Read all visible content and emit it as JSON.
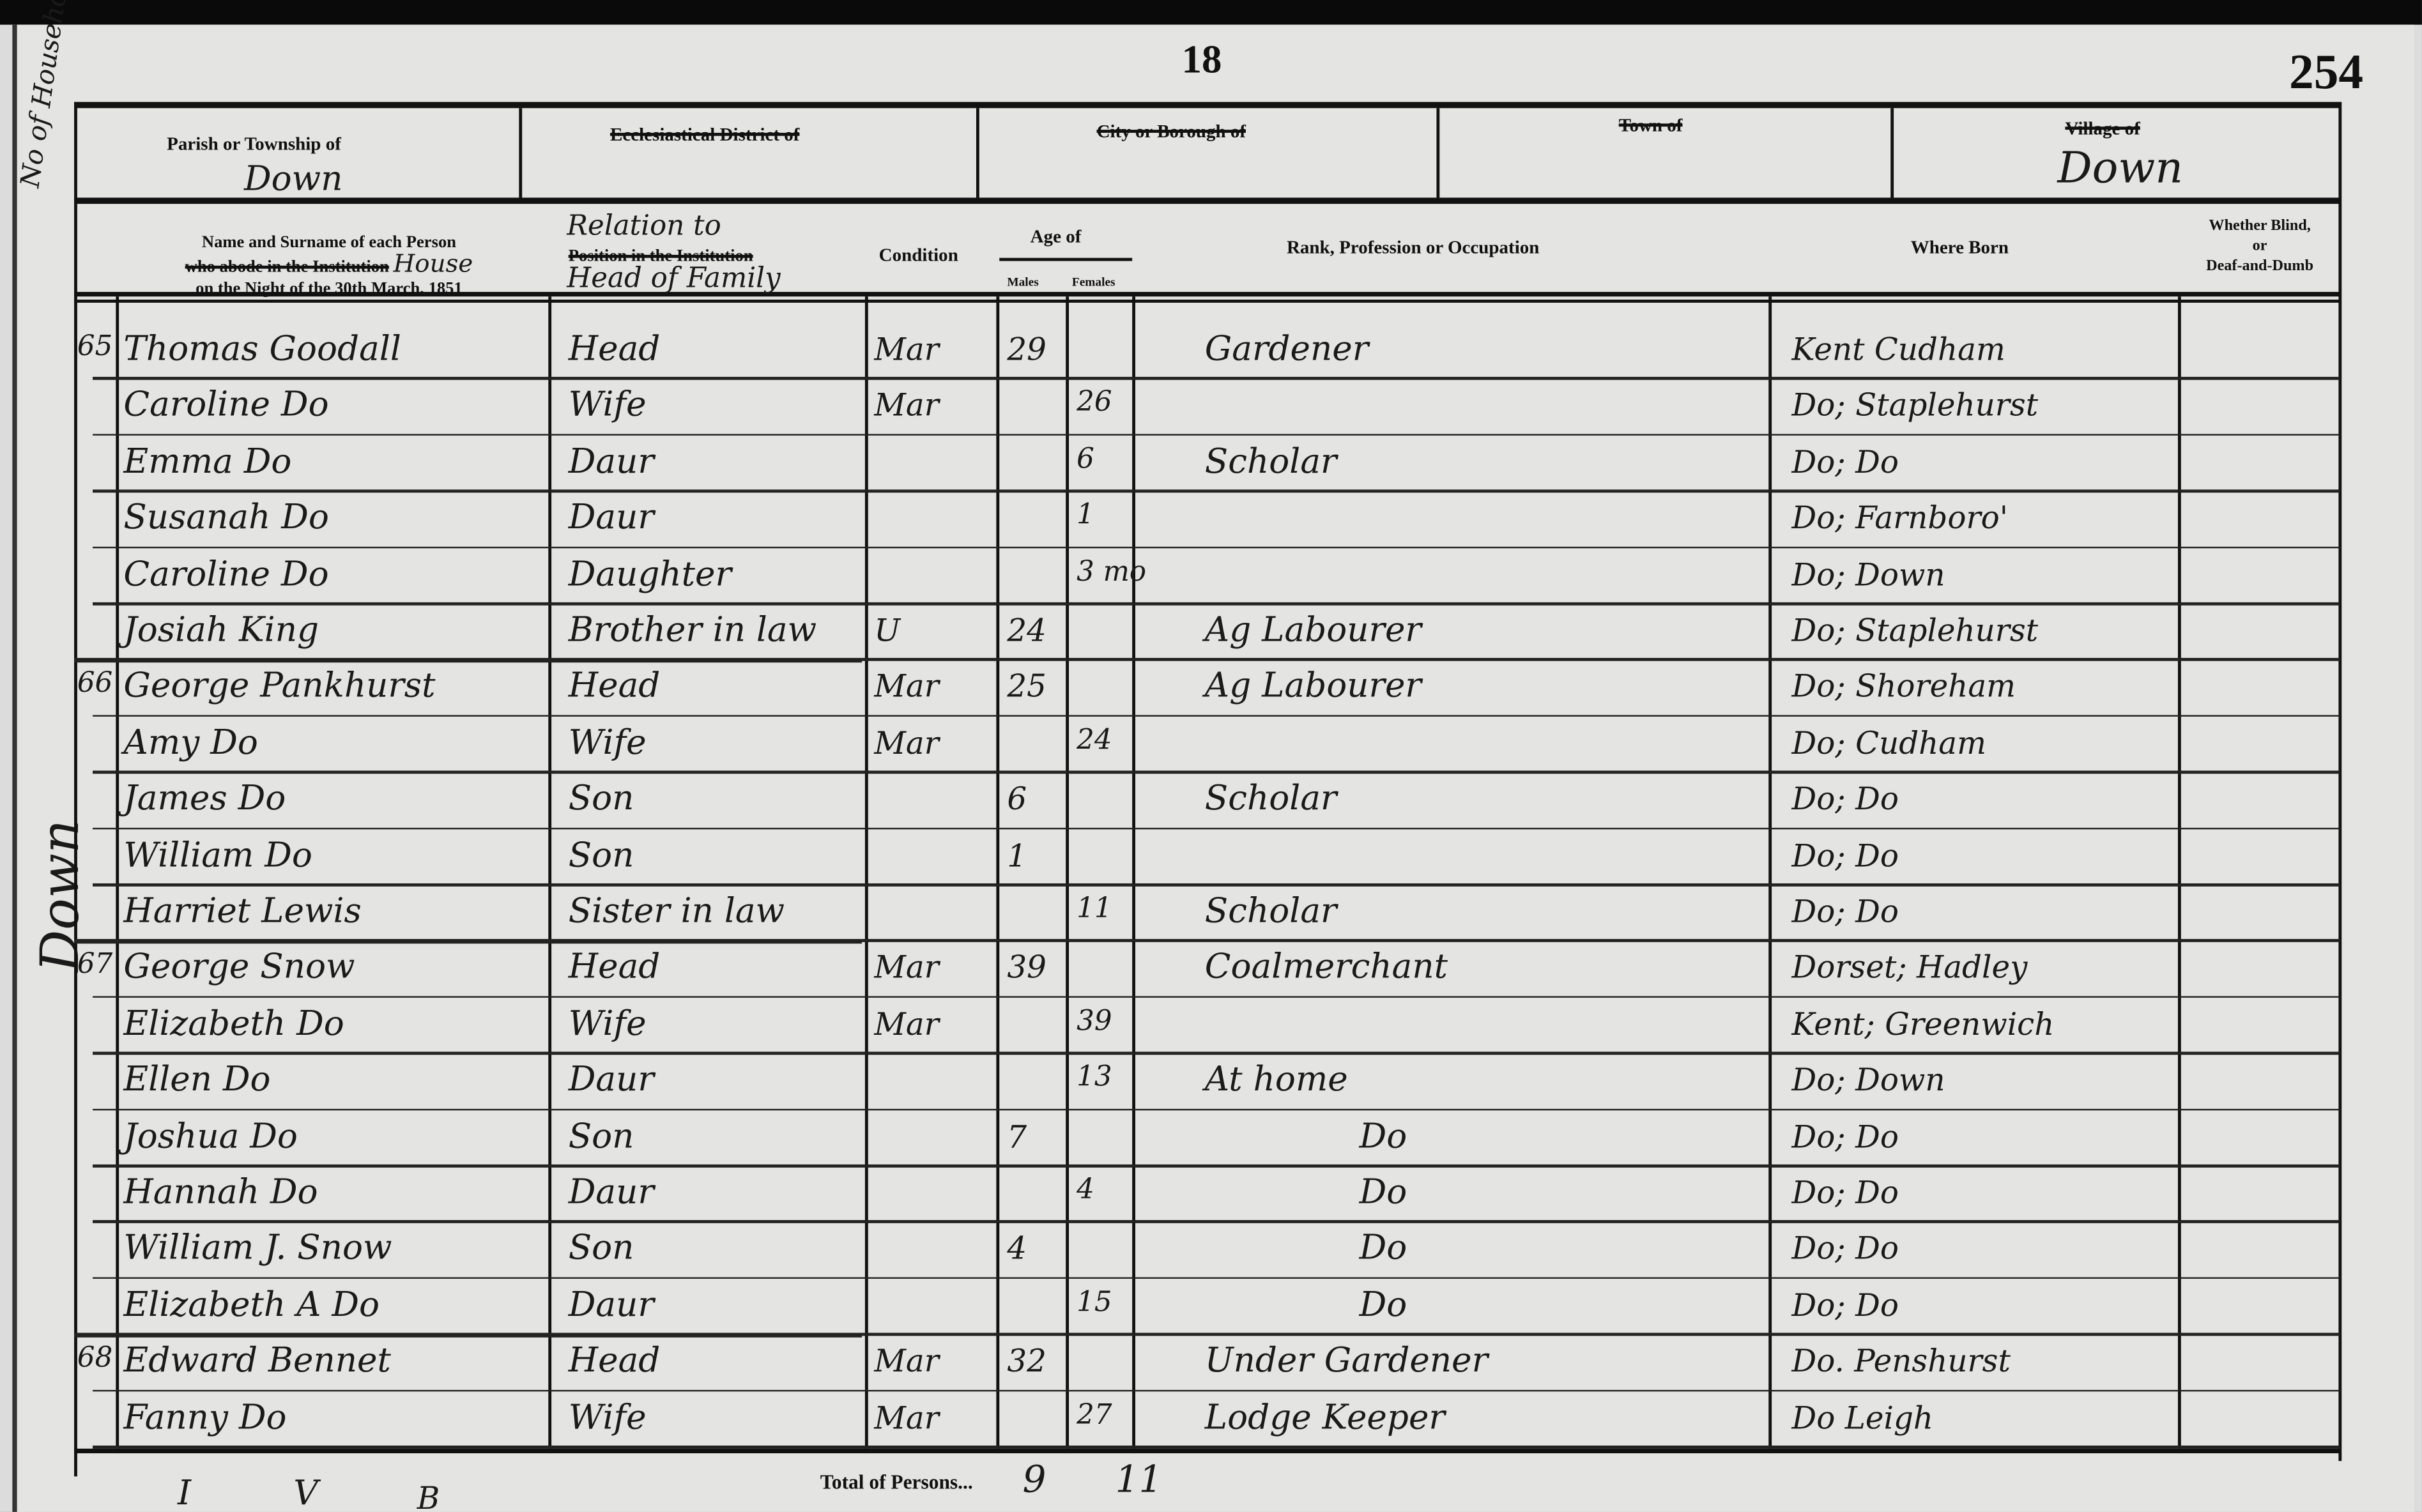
{
  "page": {
    "folio": "18",
    "page_number": "254"
  },
  "margin_note": "No of Householder's Schedule",
  "margin_place": "Down",
  "header": {
    "parish_label": "Parish or Township of",
    "parish_value": "Down",
    "ecclesiastical_label": "Ecclesiastical District of",
    "city_label": "City or Borough of",
    "town_label": "Town of",
    "village_label": "Village of",
    "village_value": "Down"
  },
  "columns": {
    "name": "Name and Surname of each Person who abode in the Institution House on the Night of the 30th March, 1851",
    "name_line1": "Name and Surname of each Person",
    "name_line2": "who abode in the Institution",
    "name_hand": "House",
    "name_line3": "on the Night of the 30th March, 1851",
    "relation_hand1": "Relation to",
    "relation_print": "Position in the Institution",
    "relation_hand2": "Head of Family",
    "condition": "Condition",
    "age": "Age of",
    "males": "Males",
    "females": "Females",
    "occupation": "Rank, Profession or Occupation",
    "where_born": "Where Born",
    "blind": "Whether Blind, or Deaf-and-Dumb",
    "blind_line1": "Whether Blind,",
    "blind_line2": "or",
    "blind_line3": "Deaf-and-Dumb"
  },
  "rows": [
    {
      "schedule": "65",
      "name": "Thomas Goodall",
      "relation": "Head",
      "condition": "Mar",
      "male_age": "29",
      "female_age": "",
      "occupation": "Gardener",
      "born": "Kent Cudham"
    },
    {
      "schedule": "",
      "name": "Caroline Do",
      "relation": "Wife",
      "condition": "Mar",
      "male_age": "",
      "female_age": "26",
      "occupation": "",
      "born": "Do; Staplehurst"
    },
    {
      "schedule": "",
      "name": "Emma Do",
      "relation": "Daur",
      "condition": "",
      "male_age": "",
      "female_age": "6",
      "occupation": "Scholar",
      "born": "Do; Do"
    },
    {
      "schedule": "",
      "name": "Susanah Do",
      "relation": "Daur",
      "condition": "",
      "male_age": "",
      "female_age": "1",
      "occupation": "",
      "born": "Do; Farnboro'"
    },
    {
      "schedule": "",
      "name": "Caroline Do",
      "relation": "Daughter",
      "condition": "",
      "male_age": "",
      "female_age": "3 mo",
      "occupation": "",
      "born": "Do; Down"
    },
    {
      "schedule": "",
      "name": "Josiah King",
      "relation": "Brother in law",
      "condition": "U",
      "male_age": "24",
      "female_age": "",
      "occupation": "Ag Labourer",
      "born": "Do; Staplehurst"
    },
    {
      "schedule": "66",
      "name": "George Pankhurst",
      "relation": "Head",
      "condition": "Mar",
      "male_age": "25",
      "female_age": "",
      "occupation": "Ag Labourer",
      "born": "Do; Shoreham"
    },
    {
      "schedule": "",
      "name": "Amy Do",
      "relation": "Wife",
      "condition": "Mar",
      "male_age": "",
      "female_age": "24",
      "occupation": "",
      "born": "Do; Cudham"
    },
    {
      "schedule": "",
      "name": "James Do",
      "relation": "Son",
      "condition": "",
      "male_age": "6",
      "female_age": "",
      "occupation": "Scholar",
      "born": "Do; Do"
    },
    {
      "schedule": "",
      "name": "William Do",
      "relation": "Son",
      "condition": "",
      "male_age": "1",
      "female_age": "",
      "occupation": "",
      "born": "Do; Do"
    },
    {
      "schedule": "",
      "name": "Harriet Lewis",
      "relation": "Sister in law",
      "condition": "",
      "male_age": "",
      "female_age": "11",
      "occupation": "Scholar",
      "born": "Do; Do"
    },
    {
      "schedule": "67",
      "name": "George Snow",
      "relation": "Head",
      "condition": "Mar",
      "male_age": "39",
      "female_age": "",
      "occupation": "Coalmerchant",
      "born": "Dorset; Hadley"
    },
    {
      "schedule": "",
      "name": "Elizabeth Do",
      "relation": "Wife",
      "condition": "Mar",
      "male_age": "",
      "female_age": "39",
      "occupation": "",
      "born": "Kent; Greenwich"
    },
    {
      "schedule": "",
      "name": "Ellen Do",
      "relation": "Daur",
      "condition": "",
      "male_age": "",
      "female_age": "13",
      "occupation": "At home",
      "born": "Do; Down"
    },
    {
      "schedule": "",
      "name": "Joshua Do",
      "relation": "Son",
      "condition": "",
      "male_age": "7",
      "female_age": "",
      "occupation": "Do",
      "born": "Do; Do"
    },
    {
      "schedule": "",
      "name": "Hannah Do",
      "relation": "Daur",
      "condition": "",
      "male_age": "",
      "female_age": "4",
      "occupation": "Do",
      "born": "Do; Do"
    },
    {
      "schedule": "",
      "name": "William J. Snow",
      "relation": "Son",
      "condition": "",
      "male_age": "4",
      "female_age": "",
      "occupation": "Do",
      "born": "Do; Do"
    },
    {
      "schedule": "",
      "name": "Elizabeth A Do",
      "relation": "Daur",
      "condition": "",
      "male_age": "",
      "female_age": "15",
      "occupation": "Do",
      "born": "Do; Do"
    },
    {
      "schedule": "68",
      "name": "Edward Bennet",
      "relation": "Head",
      "condition": "Mar",
      "male_age": "32",
      "female_age": "",
      "occupation": "Under Gardener",
      "born": "Do. Penshurst"
    },
    {
      "schedule": "",
      "name": "Fanny Do",
      "relation": "Wife",
      "condition": "Mar",
      "male_age": "",
      "female_age": "27",
      "occupation": "Lodge Keeper",
      "born": "Do Leigh"
    }
  ],
  "totals": {
    "label": "Total of Persons...",
    "males": "9",
    "females": "11"
  },
  "footer_marks": [
    "I",
    "V",
    "B"
  ]
}
